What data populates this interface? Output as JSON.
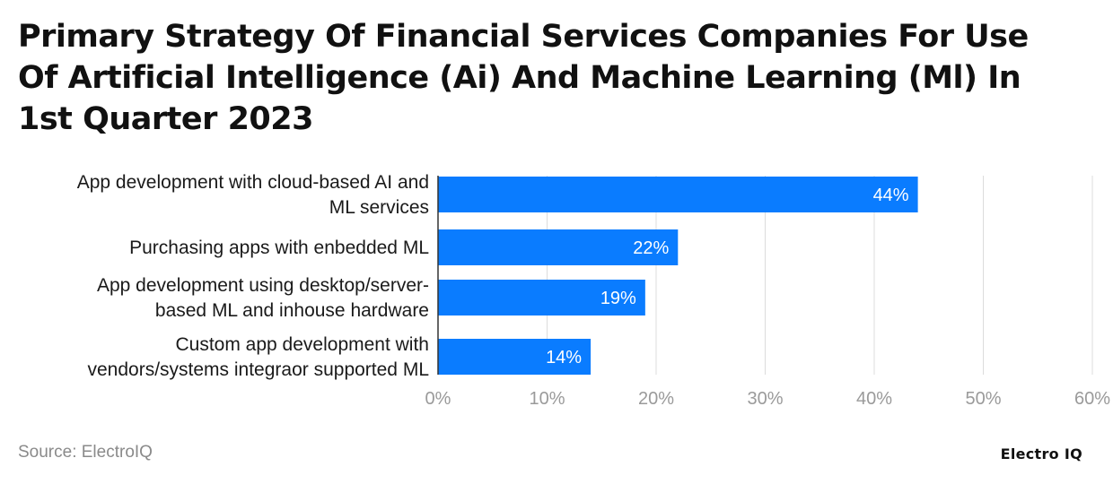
{
  "chart_data": {
    "type": "bar",
    "orientation": "horizontal",
    "title": "Primary Strategy Of Financial Services Companies For Use Of Artificial Intelligence (Ai) And Machine Learning (Ml) In 1st Quarter 2023",
    "categories": [
      [
        "App development with cloud-based AI and",
        "ML services"
      ],
      [
        "Purchasing apps with enbedded ML"
      ],
      [
        "App development using desktop/server-",
        "based ML and inhouse hardware"
      ],
      [
        "Custom app development with",
        "vendors/systems integraor supported ML"
      ]
    ],
    "values": [
      44,
      22,
      19,
      14
    ],
    "value_labels": [
      "44%",
      "22%",
      "19%",
      "14%"
    ],
    "xlim": [
      0,
      60
    ],
    "x_ticks": [
      "0%",
      "10%",
      "20%",
      "30%",
      "40%",
      "50%",
      "60%"
    ],
    "xlabel": "",
    "ylabel": "",
    "grid": true,
    "bar_color": "#0a7cff",
    "value_label_color": "#ffffff"
  },
  "footer": {
    "source": "Source: ElectroIQ",
    "brand": "Electro IQ"
  }
}
